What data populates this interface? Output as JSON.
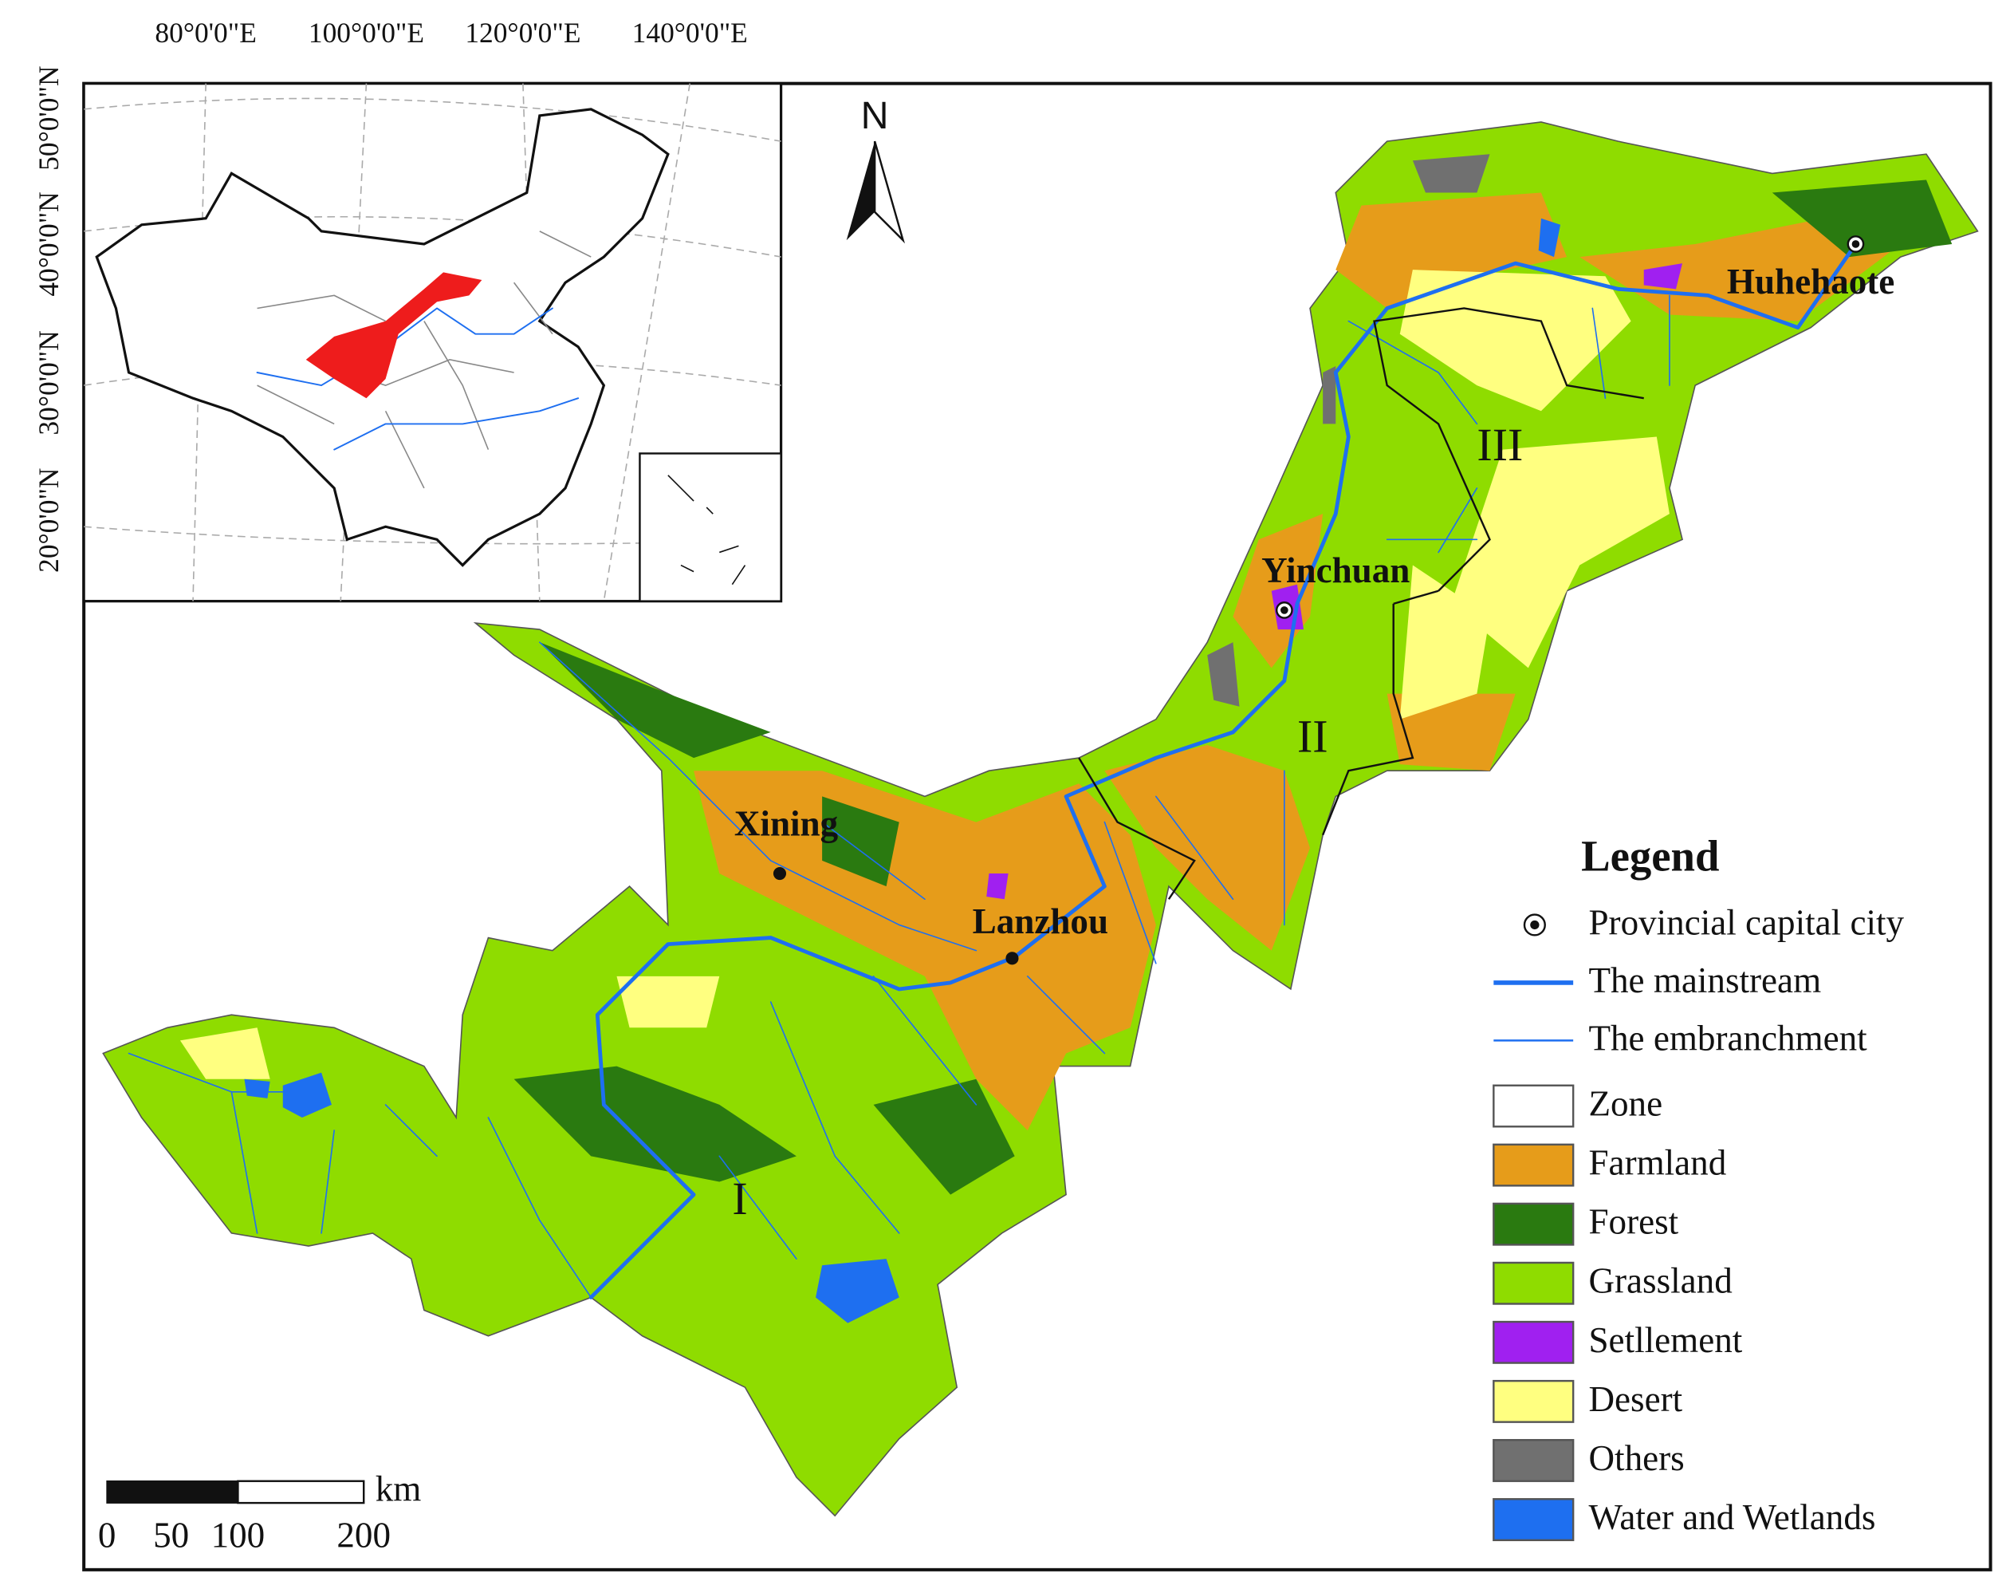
{
  "inset": {
    "longitude_labels": [
      "80°0'0\"E",
      "100°0'0\"E",
      "120°0'0\"E",
      "140°0'0\"E"
    ],
    "latitude_labels": [
      "50°0'0\"N",
      "40°0'0\"N",
      "30°0'0\"N",
      "20°0'0\"N"
    ]
  },
  "north_arrow": "N",
  "cities": [
    "Huhehaote",
    "Yinchuan",
    "Xining",
    "Lanzhou"
  ],
  "zones": [
    "I",
    "II",
    "III"
  ],
  "legend": {
    "title": "Legend",
    "point": "Provincial capital city",
    "lines": [
      "The mainstream",
      "The embranchment"
    ],
    "patches": [
      {
        "label": "Zone",
        "color": "#ffffff"
      },
      {
        "label": "Farmland",
        "color": "#e69c1a"
      },
      {
        "label": "Forest",
        "color": "#2a7a10"
      },
      {
        "label": "Grassland",
        "color": "#8fdc00"
      },
      {
        "label": "Setllement",
        "color": "#a020f0"
      },
      {
        "label": "Desert",
        "color": "#ffff80"
      },
      {
        "label": "Others",
        "color": "#707070"
      },
      {
        "label": "Water and Wetlands",
        "color": "#1e6ff0"
      }
    ]
  },
  "scale_bar": {
    "unit": "km",
    "labels": [
      "0",
      "50",
      "100",
      "200"
    ]
  }
}
